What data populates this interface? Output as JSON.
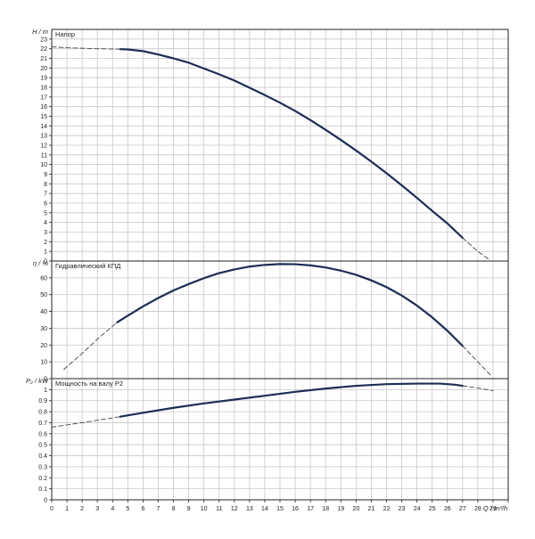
{
  "chart_data": {
    "type": "line",
    "x_axis": {
      "label": "Q / m³/h",
      "range": [
        0,
        30
      ],
      "ticks": [
        0,
        1,
        2,
        3,
        4,
        5,
        6,
        7,
        8,
        9,
        10,
        11,
        12,
        13,
        14,
        15,
        16,
        17,
        18,
        19,
        20,
        21,
        22,
        23,
        24,
        25,
        26,
        27,
        28,
        29
      ]
    },
    "panels": [
      {
        "id": "head",
        "ylabel": "H / m",
        "title": "Напор",
        "ylim": [
          0,
          24
        ],
        "yticks": [
          0,
          1,
          2,
          3,
          4,
          5,
          6,
          7,
          8,
          9,
          10,
          11,
          12,
          13,
          14,
          15,
          16,
          17,
          18,
          19,
          20,
          21,
          22,
          23
        ],
        "grid": true,
        "series": [
          {
            "style": "solid",
            "points": [
              [
                4.5,
                21.95
              ],
              [
                5,
                21.92
              ],
              [
                6,
                21.75
              ],
              [
                7,
                21.4
              ],
              [
                8,
                21.0
              ],
              [
                9,
                20.55
              ],
              [
                10,
                19.95
              ],
              [
                11,
                19.35
              ],
              [
                12,
                18.7
              ],
              [
                13,
                17.95
              ],
              [
                14,
                17.2
              ],
              [
                15,
                16.4
              ],
              [
                16,
                15.55
              ],
              [
                17,
                14.6
              ],
              [
                18,
                13.6
              ],
              [
                19,
                12.55
              ],
              [
                20,
                11.45
              ],
              [
                21,
                10.3
              ],
              [
                22,
                9.1
              ],
              [
                23,
                7.85
              ],
              [
                24,
                6.55
              ],
              [
                25,
                5.2
              ],
              [
                26,
                3.9
              ],
              [
                27,
                2.4
              ]
            ]
          },
          {
            "style": "dashed",
            "points": [
              [
                0,
                22.2
              ],
              [
                1,
                22.1
              ],
              [
                2,
                22.05
              ],
              [
                3,
                22.0
              ],
              [
                4,
                21.97
              ],
              [
                4.5,
                21.95
              ]
            ]
          },
          {
            "style": "dashed",
            "points": [
              [
                27,
                2.4
              ],
              [
                27.5,
                1.7
              ],
              [
                28,
                1.0
              ],
              [
                28.4,
                0.55
              ],
              [
                28.8,
                0.1
              ]
            ]
          }
        ]
      },
      {
        "id": "efficiency",
        "ylabel": "η / %",
        "title": "Гидравлический КПД",
        "ylim": [
          0,
          70
        ],
        "yticks": [
          0,
          10,
          20,
          30,
          40,
          50,
          60
        ],
        "grid": true,
        "series": [
          {
            "style": "solid",
            "points": [
              [
                4.3,
                33.5
              ],
              [
                5,
                37.5
              ],
              [
                6,
                43
              ],
              [
                7,
                48
              ],
              [
                8,
                52.5
              ],
              [
                9,
                56.3
              ],
              [
                10,
                59.8
              ],
              [
                11,
                62.8
              ],
              [
                12,
                65.0
              ],
              [
                13,
                66.7
              ],
              [
                14,
                67.7
              ],
              [
                15,
                68.2
              ],
              [
                16,
                68.1
              ],
              [
                17,
                67.4
              ],
              [
                18,
                66.2
              ],
              [
                19,
                64.3
              ],
              [
                20,
                61.8
              ],
              [
                21,
                58.5
              ],
              [
                22,
                54.5
              ],
              [
                23,
                49.5
              ],
              [
                24,
                43.5
              ],
              [
                25,
                36.5
              ],
              [
                26,
                28.5
              ],
              [
                27,
                19.5
              ]
            ]
          },
          {
            "style": "dashed",
            "points": [
              [
                0.8,
                5.5
              ],
              [
                2,
                15
              ],
              [
                3,
                23.5
              ],
              [
                4.3,
                33.5
              ]
            ]
          },
          {
            "style": "dashed",
            "points": [
              [
                27,
                19.5
              ],
              [
                28,
                10
              ],
              [
                28.9,
                1.5
              ]
            ]
          }
        ]
      },
      {
        "id": "power",
        "ylabel": "P₂ / kW",
        "title": "Мощность на валу P2",
        "ylim": [
          0,
          1.1
        ],
        "yticks": [
          0,
          0.1,
          0.2,
          0.3,
          0.4,
          0.5,
          0.6,
          0.7,
          0.8,
          0.9,
          1
        ],
        "ytick_labels": [
          "0",
          "0.1",
          "0.2",
          "0.3",
          "0.4",
          "0.5",
          "0.6",
          "0.7",
          "0.8",
          "0.9",
          "1"
        ],
        "grid": true,
        "series": [
          {
            "style": "solid",
            "points": [
              [
                4.5,
                0.755
              ],
              [
                6,
                0.79
              ],
              [
                8,
                0.835
              ],
              [
                10,
                0.875
              ],
              [
                12,
                0.91
              ],
              [
                14,
                0.945
              ],
              [
                16,
                0.98
              ],
              [
                18,
                1.01
              ],
              [
                20,
                1.035
              ],
              [
                22,
                1.05
              ],
              [
                24,
                1.055
              ],
              [
                25.5,
                1.055
              ],
              [
                26.5,
                1.045
              ],
              [
                27,
                1.035
              ]
            ]
          },
          {
            "style": "dashed",
            "points": [
              [
                0,
                0.66
              ],
              [
                2,
                0.7
              ],
              [
                4.5,
                0.755
              ]
            ]
          },
          {
            "style": "dashed",
            "points": [
              [
                27,
                1.035
              ],
              [
                28,
                1.015
              ],
              [
                29,
                0.99
              ]
            ]
          }
        ]
      }
    ]
  }
}
